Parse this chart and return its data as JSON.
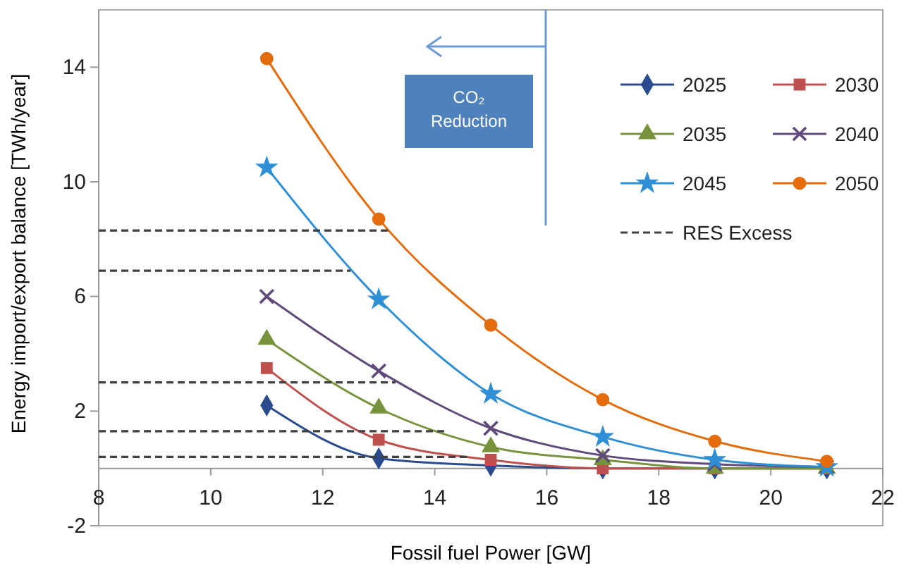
{
  "chart_data": {
    "type": "line",
    "xlabel": "Fossil fuel Power [GW]",
    "ylabel": "Energy import/export balance [TWh/year]",
    "x": [
      11,
      13,
      15,
      17,
      19,
      21
    ],
    "series": [
      {
        "name": "2025",
        "color": "#2a4b8d",
        "marker": "diamond",
        "values": [
          2.2,
          0.35,
          0.1,
          0,
          0,
          0
        ]
      },
      {
        "name": "2030",
        "color": "#c0504d",
        "marker": "square",
        "values": [
          3.5,
          1.0,
          0.3,
          0,
          0,
          0
        ]
      },
      {
        "name": "2035",
        "color": "#77933c",
        "marker": "triangle",
        "values": [
          4.5,
          2.1,
          0.75,
          0.3,
          0,
          0
        ]
      },
      {
        "name": "2040",
        "color": "#604a7b",
        "marker": "cross",
        "values": [
          6.0,
          3.4,
          1.4,
          0.45,
          0.15,
          0.05
        ]
      },
      {
        "name": "2045",
        "color": "#2e8fd6",
        "marker": "star",
        "values": [
          10.5,
          5.9,
          2.6,
          1.1,
          0.3,
          0.05
        ]
      },
      {
        "name": "2050",
        "color": "#e46c0a",
        "marker": "circle",
        "values": [
          14.3,
          8.7,
          5.0,
          2.4,
          0.95,
          0.25
        ]
      },
      {
        "name": "RES Excess",
        "color": "#404040",
        "marker": "none",
        "line_style": "dashed",
        "x": [
          8,
          13.2
        ],
        "values": [
          8.3,
          8.3
        ]
      },
      {
        "color": "#404040",
        "marker": "none",
        "line_style": "dashed",
        "x": [
          8,
          12.5
        ],
        "values": [
          6.9,
          6.9
        ]
      },
      {
        "color": "#404040",
        "marker": "none",
        "line_style": "dashed",
        "x": [
          8,
          13.3
        ],
        "values": [
          3.0,
          3.0
        ]
      },
      {
        "color": "#404040",
        "marker": "none",
        "line_style": "dashed",
        "x": [
          8,
          14.2
        ],
        "values": [
          1.3,
          1.3
        ]
      },
      {
        "color": "#404040",
        "marker": "none",
        "line_style": "dashed",
        "x": [
          8,
          14.6
        ],
        "values": [
          0.4,
          0.4
        ]
      }
    ],
    "annotations": [
      "CO₂ Reduction"
    ],
    "xlim": [
      8,
      22
    ],
    "xticks": [
      8,
      10,
      12,
      14,
      16,
      18,
      20,
      22
    ],
    "ylim": [
      -2,
      16
    ],
    "yticks": [
      -2,
      2,
      6,
      10,
      14
    ],
    "grid": false,
    "legend": "top right",
    "line_style": "solid"
  }
}
